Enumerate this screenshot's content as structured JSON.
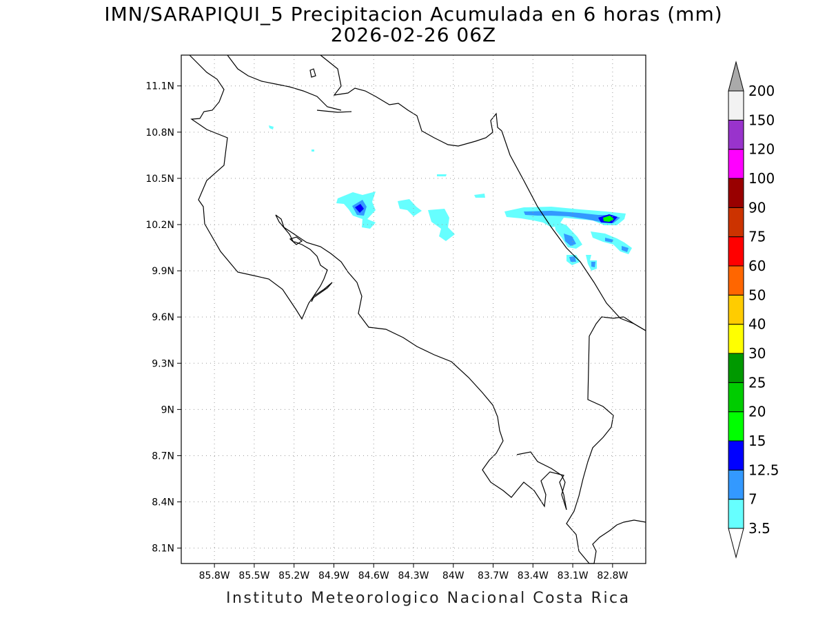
{
  "title_line1": "IMN/SARAPIQUI_5 Precipitacion Acumulada en 6 horas (mm)",
  "title_line2": "2026-02-26 06Z",
  "footer": "Instituto Meteorologico Nacional Costa Rica",
  "map": {
    "lon_range": [
      -86.05,
      -82.55
    ],
    "lat_range": [
      8.0,
      11.3
    ],
    "lon_ticks": [
      "85.8W",
      "85.5W",
      "85.2W",
      "84.9W",
      "84.6W",
      "84.3W",
      "84W",
      "83.7W",
      "83.4W",
      "83.1W",
      "82.8W"
    ],
    "lon_tick_values": [
      -85.8,
      -85.5,
      -85.2,
      -84.9,
      -84.6,
      -84.3,
      -84.0,
      -83.7,
      -83.4,
      -83.1,
      -82.8
    ],
    "lat_ticks": [
      "11.1N",
      "10.8N",
      "10.5N",
      "10.2N",
      "9.9N",
      "9.6N",
      "9.3N",
      "9N",
      "8.7N",
      "8.4N",
      "8.1N"
    ],
    "lat_tick_values": [
      11.1,
      10.8,
      10.5,
      10.2,
      9.9,
      9.6,
      9.3,
      9.0,
      8.7,
      8.4,
      8.1
    ],
    "grid": "dotted"
  },
  "colorbar": {
    "labels": [
      "3.5",
      "7",
      "12.5",
      "15",
      "20",
      "25",
      "30",
      "40",
      "50",
      "60",
      "75",
      "90",
      "100",
      "120",
      "150",
      "200"
    ],
    "colors": [
      "#ffffff",
      "#66ffff",
      "#3399ff",
      "#0000ff",
      "#00ff00",
      "#00cc00",
      "#009900",
      "#ffff00",
      "#ffcc00",
      "#ff6600",
      "#ff0000",
      "#cc3300",
      "#990000",
      "#ff00ff",
      "#9933cc",
      "#f2f2f2",
      "#aaaaaa"
    ]
  },
  "precip_cells": [
    {
      "lon": -84.63,
      "lat": 10.31,
      "level": "7"
    },
    {
      "lon": -84.63,
      "lat": 10.31,
      "level": "12.5"
    },
    {
      "lon": -83.25,
      "lat": 10.29,
      "level": "7"
    },
    {
      "lon": -82.78,
      "lat": 10.24,
      "level": "15"
    },
    {
      "lon": -83.06,
      "lat": 10.1,
      "level": "7"
    },
    {
      "lon": -82.7,
      "lat": 10.04,
      "level": "7"
    },
    {
      "lon": -83.08,
      "lat": 9.99,
      "level": "7"
    },
    {
      "lon": -82.95,
      "lat": 9.93,
      "level": "7"
    }
  ]
}
